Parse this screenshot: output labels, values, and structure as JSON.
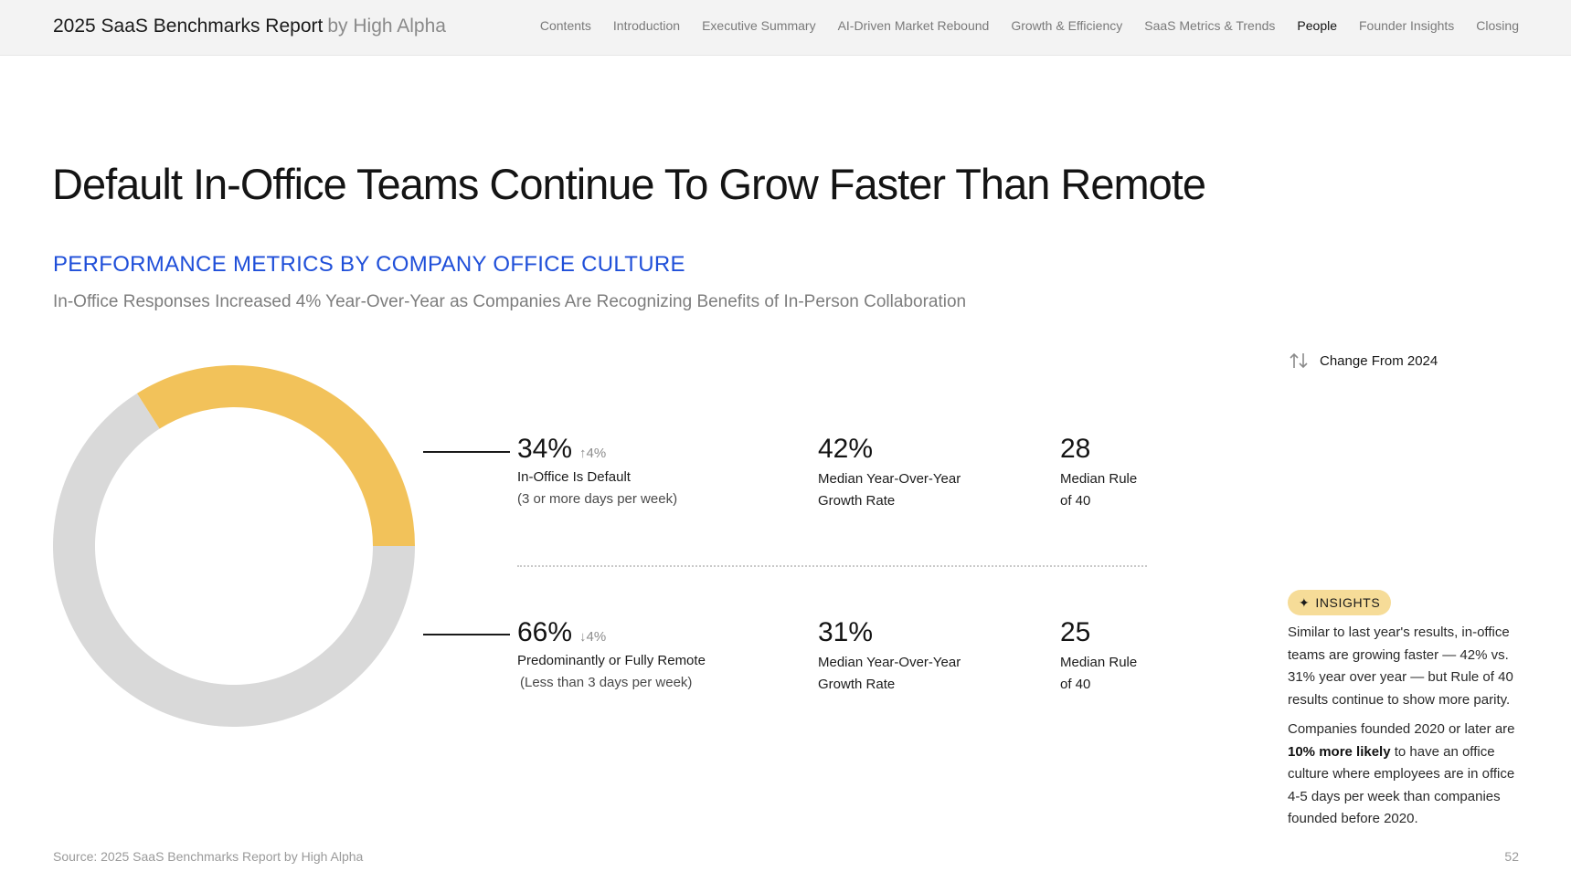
{
  "header": {
    "brand_title": "2025 SaaS Benchmarks Report",
    "brand_by": "by High Alpha",
    "nav": [
      {
        "label": "Contents"
      },
      {
        "label": "Introduction"
      },
      {
        "label": "Executive Summary"
      },
      {
        "label": "AI-Driven Market Rebound"
      },
      {
        "label": "Growth & Efficiency"
      },
      {
        "label": "SaaS Metrics & Trends"
      },
      {
        "label": "People",
        "active": true
      },
      {
        "label": "Founder Insights"
      },
      {
        "label": "Closing"
      }
    ]
  },
  "main": {
    "title": "Default In-Office Teams Continue To Grow Faster Than Remote",
    "section_title": "PERFORMANCE METRICS BY COMPANY OFFICE CULTURE",
    "subtitle": "In-Office Responses Increased 4% Year-Over-Year as Companies Are Recognizing Benefits of In-Person Collaboration"
  },
  "chart_data": {
    "type": "pie",
    "categories": [
      "In-Office Is Default",
      "Predominantly or Fully Remote"
    ],
    "values": [
      34,
      66
    ],
    "colors": [
      "#f2c25a",
      "#d9d9d9"
    ]
  },
  "rows": [
    {
      "share": "34%",
      "change": "4%",
      "change_dir": "up",
      "label": "In-Office Is Default",
      "sublabel": "(3 or more days per week)",
      "growth": "42%",
      "growth_label_1": "Median Year-Over-Year",
      "growth_label_2": "Growth Rate",
      "rule": "28",
      "rule_label_1": "Median Rule",
      "rule_label_2": "of 40"
    },
    {
      "share": "66%",
      "change": "4%",
      "change_dir": "down",
      "label": "Predominantly or Fully Remote",
      "sublabel": "(Less than 3 days per week)",
      "growth": "31%",
      "growth_label_1": "Median Year-Over-Year",
      "growth_label_2": "Growth Rate",
      "rule": "25",
      "rule_label_1": "Median Rule",
      "rule_label_2": "of 40"
    }
  ],
  "legend": {
    "label": "Change From 2024",
    "icon": "up-down-arrows-icon"
  },
  "insights": {
    "badge": "INSIGHTS",
    "paragraph1": "Similar to last year's results, in-office teams are growing faster — 42% vs. 31% year over year — but Rule of 40 results continue to show more parity.",
    "paragraph2_pre": "Companies founded 2020 or later are ",
    "paragraph2_bold": "10% more likely",
    "paragraph2_post": " to have an office culture where employees are in office 4-5 days per week than companies founded before 2020."
  },
  "footer": {
    "source": "Source: 2025 SaaS Benchmarks Report by High Alpha",
    "page_number": "52"
  }
}
